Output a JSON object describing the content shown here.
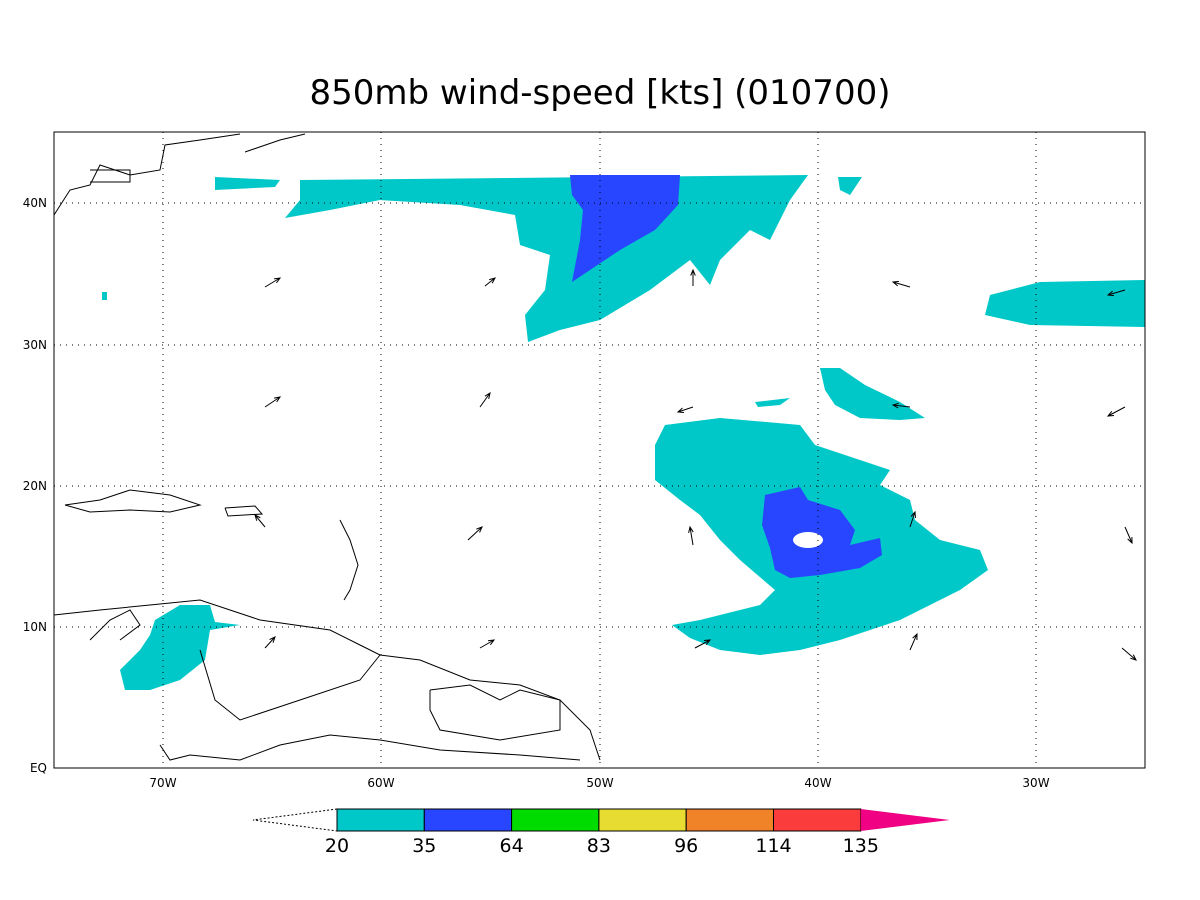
{
  "title": "850mb wind-speed [kts] (010700)",
  "longitude_labels": [
    "70W",
    "60W",
    "50W",
    "40W",
    "30W"
  ],
  "latitude_labels": [
    "EQ",
    "10N",
    "20N",
    "30N",
    "40N"
  ],
  "colorbar": {
    "labels": [
      20,
      35,
      64,
      83,
      96,
      114,
      135
    ],
    "colors": [
      "#00c8c8",
      "#2846ff",
      "#00dc00",
      "#e6dc32",
      "#f08228",
      "#fa3c3c",
      "#f00082"
    ]
  }
}
